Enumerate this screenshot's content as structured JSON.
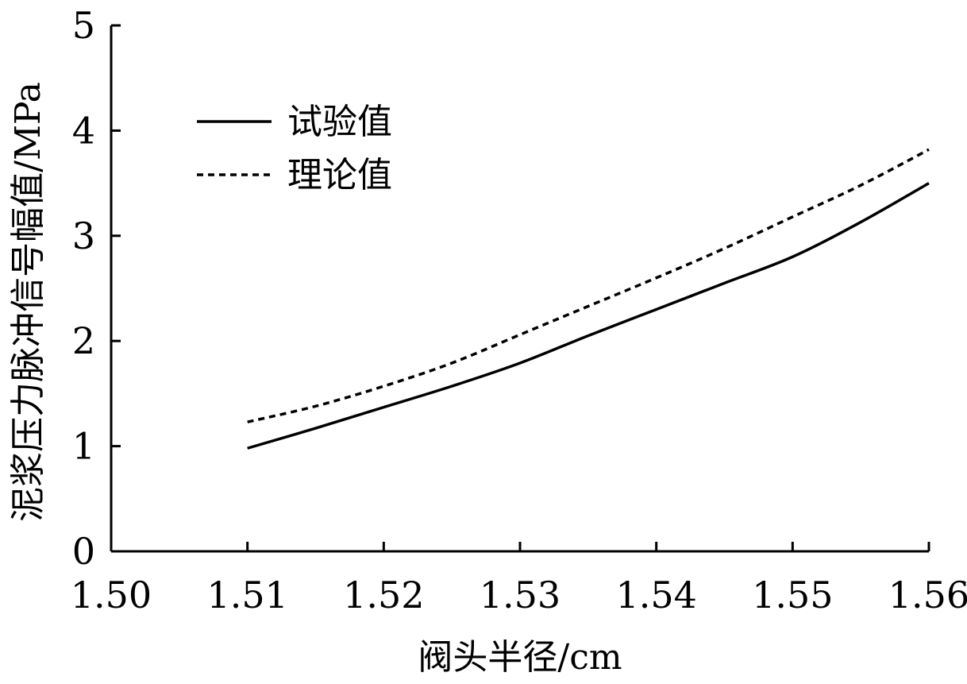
{
  "chart_data": {
    "type": "line",
    "title": "",
    "xlabel": "阀头半径/cm",
    "ylabel": "泥浆压力脉冲信号幅值/MPa",
    "xlim": [
      1.5,
      1.56
    ],
    "ylim": [
      0,
      5
    ],
    "x_ticks": [
      "1.50",
      "1.51",
      "1.52",
      "1.53",
      "1.54",
      "1.55",
      "1.56"
    ],
    "y_ticks": [
      "0",
      "1",
      "2",
      "3",
      "4",
      "5"
    ],
    "grid": false,
    "legend_position": "top-left",
    "series": [
      {
        "name": "试验值",
        "style": "solid",
        "color": "#000000",
        "x": [
          1.51,
          1.515,
          1.52,
          1.525,
          1.53,
          1.535,
          1.54,
          1.545,
          1.55,
          1.555,
          1.56
        ],
        "y": [
          0.98,
          1.17,
          1.37,
          1.57,
          1.79,
          2.05,
          2.3,
          2.55,
          2.8,
          3.13,
          3.5
        ]
      },
      {
        "name": "理论值",
        "style": "dashed",
        "color": "#000000",
        "x": [
          1.51,
          1.515,
          1.52,
          1.525,
          1.53,
          1.535,
          1.54,
          1.545,
          1.55,
          1.555,
          1.56
        ],
        "y": [
          1.23,
          1.38,
          1.57,
          1.79,
          2.06,
          2.33,
          2.6,
          2.88,
          3.18,
          3.48,
          3.82
        ]
      }
    ]
  }
}
